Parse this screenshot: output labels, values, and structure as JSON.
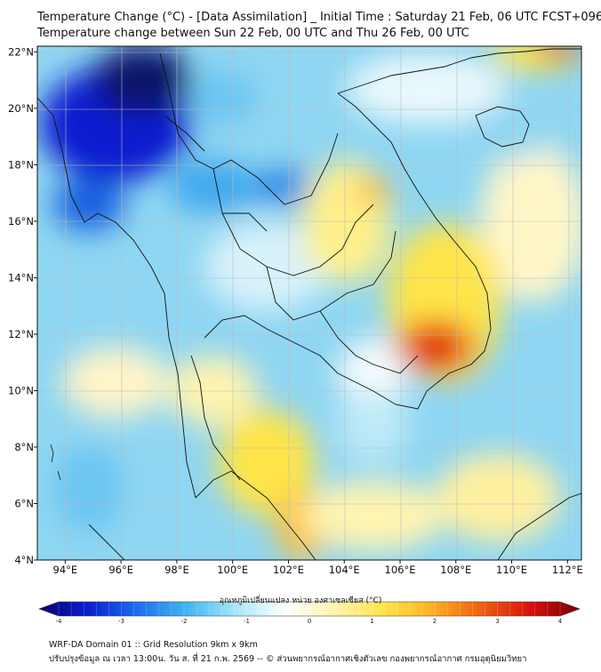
{
  "header": {
    "title_line1": "Temperature Change (°C) - [Data Assimilation] _ Initial Time : Saturday 21 Feb, 06 UTC FCST+096",
    "title_line2": "Temperature change between Sun 22 Feb, 00 UTC and Thu 26 Feb, 00 UTC"
  },
  "map": {
    "lon_ticks": [
      "94°E",
      "96°E",
      "98°E",
      "100°E",
      "102°E",
      "104°E",
      "106°E",
      "108°E",
      "110°E",
      "112°E"
    ],
    "lat_ticks": [
      "22°N",
      "20°N",
      "18°N",
      "16°N",
      "14°N",
      "12°N",
      "10°N",
      "8°N",
      "6°N",
      "4°N"
    ],
    "extent": {
      "lon": [
        93,
        112.5
      ],
      "lat": [
        4,
        22.2
      ]
    }
  },
  "colorbar": {
    "label": "อุณหภูมิเปลี่ยนแปลง หน่วย องศาเซลเซียส (°C)",
    "ticks": [
      "-4",
      "-3",
      "-2",
      "-1",
      "0",
      "1",
      "2",
      "3",
      "4"
    ],
    "range": [
      -4,
      4
    ],
    "colors": [
      "#08006e",
      "#0a1fd0",
      "#1f6ef0",
      "#3fb6f0",
      "#a8e6f8",
      "#ffffff",
      "#fff4b0",
      "#ffe54a",
      "#ffb020",
      "#f06010",
      "#d81010",
      "#7a0000"
    ]
  },
  "footer": {
    "line1": "WRF-DA Domain 01 :: Grid Resolution 9km x 9km",
    "line2": "ปรับปรุงข้อมูล ณ เวลา 13:00น. วัน ส. ที่ 21 ก.พ. 2569 -- © ส่วนพยากรณ์อากาศเชิงตัวเลข กองพยากรณ์อากาศ กรมอุตุนิยมวิทยา"
  }
}
